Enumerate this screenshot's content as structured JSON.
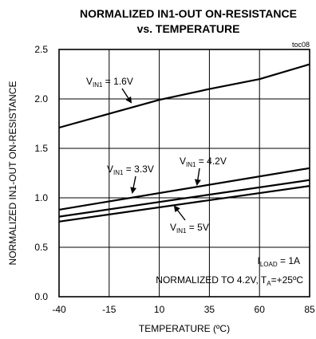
{
  "chart_data": {
    "type": "line",
    "title": "NORMALIZED IN1-OUT ON-RESISTANCE",
    "subtitle": "vs. TEMPERATURE",
    "figure_id": "toc08",
    "xlabel": "TEMPERATURE (ºC)",
    "ylabel": "NORMALIZED IN1-OUT ON-RESISTANCE",
    "xlim": [
      -40,
      85
    ],
    "ylim": [
      0.0,
      2.5
    ],
    "x_ticks": [
      "-40",
      "-15",
      "10",
      "35",
      "60",
      "85"
    ],
    "y_ticks": [
      "0.0",
      "0.5",
      "1.0",
      "1.5",
      "2.0",
      "2.5"
    ],
    "grid": true,
    "series": [
      {
        "name": "VIN1 = 1.6V",
        "x": [
          -40,
          -15,
          10,
          35,
          60,
          85
        ],
        "y": [
          1.71,
          1.85,
          1.99,
          2.1,
          2.2,
          2.35
        ]
      },
      {
        "name": "VIN1 = 3.3V",
        "x": [
          -40,
          85
        ],
        "y": [
          0.88,
          1.3
        ]
      },
      {
        "name": "VIN1 = 4.2V",
        "x": [
          -40,
          85
        ],
        "y": [
          0.81,
          1.18
        ]
      },
      {
        "name": "VIN1 = 5V",
        "x": [
          -40,
          85
        ],
        "y": [
          0.76,
          1.12
        ]
      }
    ],
    "annotations": [
      {
        "base": "V",
        "sub": "IN1",
        "rest": " = 1.6V"
      },
      {
        "base": "V",
        "sub": "IN1",
        "rest": " = 3.3V"
      },
      {
        "base": "V",
        "sub": "IN1",
        "rest": " = 4.2V"
      },
      {
        "base": "V",
        "sub": "IN1",
        "rest": " = 5V"
      }
    ],
    "notes": {
      "load_base": "I",
      "load_sub": "LOAD",
      "load_rest": " = 1A",
      "norm_prefix": "NORMALIZED TO 4.2V, T",
      "norm_sub": "A",
      "norm_rest": "=+25ºC"
    }
  }
}
